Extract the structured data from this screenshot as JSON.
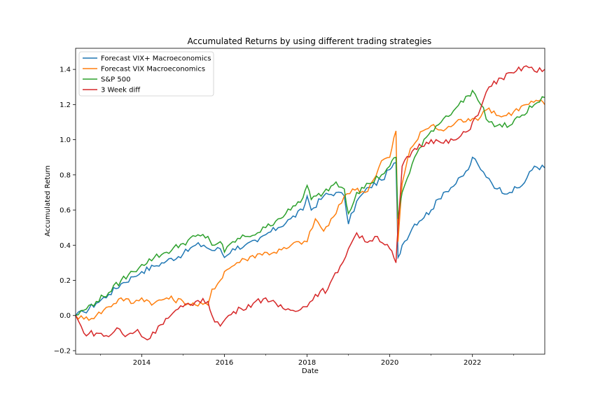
{
  "chart_data": {
    "type": "line",
    "title": "Accumulated Returns by using different trading strategies",
    "xlabel": "Date",
    "ylabel": "Accumulated Return",
    "xlim": [
      2012.4,
      2023.75
    ],
    "ylim": [
      -0.22,
      1.52
    ],
    "x_ticks": [
      2014,
      2016,
      2018,
      2020,
      2022
    ],
    "y_ticks": [
      -0.2,
      0.0,
      0.2,
      0.4,
      0.6,
      0.8,
      1.0,
      1.2,
      1.4
    ],
    "y_tick_labels": [
      "−0.2",
      "0.0",
      "0.2",
      "0.4",
      "0.6",
      "0.8",
      "1.0",
      "1.2",
      "1.4"
    ],
    "legend_position": "upper-left",
    "grid": false,
    "series": [
      {
        "name": "Forecast VIX+ Macroeconomics",
        "color": "#1f77b4",
        "points": [
          [
            2012.4,
            0.0
          ],
          [
            2012.6,
            0.02
          ],
          [
            2012.9,
            0.07
          ],
          [
            2013.2,
            0.12
          ],
          [
            2013.5,
            0.18
          ],
          [
            2013.8,
            0.22
          ],
          [
            2014.0,
            0.25
          ],
          [
            2014.3,
            0.28
          ],
          [
            2014.6,
            0.31
          ],
          [
            2015.0,
            0.35
          ],
          [
            2015.3,
            0.4
          ],
          [
            2015.5,
            0.4
          ],
          [
            2015.7,
            0.37
          ],
          [
            2015.9,
            0.38
          ],
          [
            2016.0,
            0.33
          ],
          [
            2016.2,
            0.38
          ],
          [
            2016.5,
            0.4
          ],
          [
            2016.8,
            0.42
          ],
          [
            2017.0,
            0.46
          ],
          [
            2017.3,
            0.5
          ],
          [
            2017.6,
            0.55
          ],
          [
            2017.9,
            0.6
          ],
          [
            2018.0,
            0.68
          ],
          [
            2018.1,
            0.6
          ],
          [
            2018.4,
            0.68
          ],
          [
            2018.7,
            0.7
          ],
          [
            2018.9,
            0.68
          ],
          [
            2019.0,
            0.52
          ],
          [
            2019.2,
            0.65
          ],
          [
            2019.5,
            0.73
          ],
          [
            2019.8,
            0.77
          ],
          [
            2020.0,
            0.83
          ],
          [
            2020.15,
            0.87
          ],
          [
            2020.2,
            0.33
          ],
          [
            2020.3,
            0.4
          ],
          [
            2020.6,
            0.52
          ],
          [
            2021.0,
            0.6
          ],
          [
            2021.3,
            0.7
          ],
          [
            2021.6,
            0.75
          ],
          [
            2021.9,
            0.83
          ],
          [
            2022.0,
            0.9
          ],
          [
            2022.2,
            0.83
          ],
          [
            2022.4,
            0.78
          ],
          [
            2022.6,
            0.72
          ],
          [
            2022.9,
            0.7
          ],
          [
            2023.2,
            0.74
          ],
          [
            2023.5,
            0.85
          ],
          [
            2023.75,
            0.84
          ]
        ]
      },
      {
        "name": "Forecast VIX Macroeconomics",
        "color": "#ff7f0e",
        "points": [
          [
            2012.4,
            0.0
          ],
          [
            2012.6,
            -0.02
          ],
          [
            2012.9,
            0.0
          ],
          [
            2013.2,
            0.05
          ],
          [
            2013.5,
            0.1
          ],
          [
            2013.8,
            0.07
          ],
          [
            2014.0,
            0.1
          ],
          [
            2014.3,
            0.07
          ],
          [
            2014.6,
            0.1
          ],
          [
            2015.0,
            0.08
          ],
          [
            2015.3,
            0.06
          ],
          [
            2015.6,
            0.06
          ],
          [
            2015.7,
            0.15
          ],
          [
            2015.9,
            0.2
          ],
          [
            2016.0,
            0.25
          ],
          [
            2016.3,
            0.3
          ],
          [
            2016.5,
            0.32
          ],
          [
            2016.8,
            0.35
          ],
          [
            2017.2,
            0.36
          ],
          [
            2017.5,
            0.38
          ],
          [
            2017.8,
            0.42
          ],
          [
            2018.0,
            0.42
          ],
          [
            2018.2,
            0.55
          ],
          [
            2018.4,
            0.48
          ],
          [
            2018.7,
            0.58
          ],
          [
            2018.9,
            0.68
          ],
          [
            2019.1,
            0.72
          ],
          [
            2019.4,
            0.7
          ],
          [
            2019.6,
            0.77
          ],
          [
            2019.8,
            0.88
          ],
          [
            2020.0,
            0.9
          ],
          [
            2020.15,
            1.05
          ],
          [
            2020.2,
            0.42
          ],
          [
            2020.3,
            0.75
          ],
          [
            2020.5,
            0.95
          ],
          [
            2020.8,
            1.05
          ],
          [
            2021.0,
            1.08
          ],
          [
            2021.3,
            1.05
          ],
          [
            2021.6,
            1.1
          ],
          [
            2021.9,
            1.12
          ],
          [
            2022.0,
            1.12
          ],
          [
            2022.2,
            1.13
          ],
          [
            2022.4,
            1.18
          ],
          [
            2022.7,
            1.13
          ],
          [
            2023.0,
            1.16
          ],
          [
            2023.3,
            1.2
          ],
          [
            2023.6,
            1.22
          ],
          [
            2023.75,
            1.2
          ]
        ]
      },
      {
        "name": "S&P 500",
        "color": "#2ca02c",
        "points": [
          [
            2012.4,
            0.0
          ],
          [
            2012.6,
            0.03
          ],
          [
            2012.9,
            0.08
          ],
          [
            2013.2,
            0.13
          ],
          [
            2013.5,
            0.2
          ],
          [
            2013.8,
            0.25
          ],
          [
            2014.0,
            0.29
          ],
          [
            2014.3,
            0.33
          ],
          [
            2014.6,
            0.36
          ],
          [
            2015.0,
            0.41
          ],
          [
            2015.3,
            0.45
          ],
          [
            2015.6,
            0.45
          ],
          [
            2015.7,
            0.4
          ],
          [
            2015.9,
            0.42
          ],
          [
            2016.0,
            0.36
          ],
          [
            2016.2,
            0.42
          ],
          [
            2016.5,
            0.45
          ],
          [
            2016.8,
            0.47
          ],
          [
            2017.0,
            0.5
          ],
          [
            2017.3,
            0.55
          ],
          [
            2017.6,
            0.6
          ],
          [
            2017.9,
            0.67
          ],
          [
            2018.0,
            0.74
          ],
          [
            2018.1,
            0.66
          ],
          [
            2018.4,
            0.7
          ],
          [
            2018.7,
            0.76
          ],
          [
            2018.9,
            0.72
          ],
          [
            2019.0,
            0.58
          ],
          [
            2019.2,
            0.7
          ],
          [
            2019.5,
            0.75
          ],
          [
            2019.8,
            0.8
          ],
          [
            2020.0,
            0.85
          ],
          [
            2020.15,
            0.9
          ],
          [
            2020.2,
            0.55
          ],
          [
            2020.3,
            0.7
          ],
          [
            2020.6,
            0.9
          ],
          [
            2021.0,
            1.05
          ],
          [
            2021.3,
            1.12
          ],
          [
            2021.6,
            1.18
          ],
          [
            2021.9,
            1.25
          ],
          [
            2022.0,
            1.28
          ],
          [
            2022.2,
            1.2
          ],
          [
            2022.4,
            1.1
          ],
          [
            2022.6,
            1.08
          ],
          [
            2022.9,
            1.08
          ],
          [
            2023.2,
            1.14
          ],
          [
            2023.5,
            1.2
          ],
          [
            2023.75,
            1.24
          ]
        ]
      },
      {
        "name": "3 Week diff",
        "color": "#d62728",
        "points": [
          [
            2012.4,
            0.0
          ],
          [
            2012.6,
            -0.1
          ],
          [
            2012.9,
            -0.1
          ],
          [
            2013.2,
            -0.12
          ],
          [
            2013.4,
            -0.07
          ],
          [
            2013.6,
            -0.12
          ],
          [
            2013.9,
            -0.08
          ],
          [
            2014.0,
            -0.12
          ],
          [
            2014.2,
            -0.13
          ],
          [
            2014.4,
            -0.06
          ],
          [
            2014.7,
            0.0
          ],
          [
            2015.0,
            0.05
          ],
          [
            2015.3,
            0.08
          ],
          [
            2015.6,
            0.08
          ],
          [
            2015.7,
            0.0
          ],
          [
            2015.9,
            -0.06
          ],
          [
            2016.1,
            0.0
          ],
          [
            2016.4,
            0.04
          ],
          [
            2016.7,
            0.07
          ],
          [
            2017.0,
            0.1
          ],
          [
            2017.3,
            0.05
          ],
          [
            2017.6,
            0.03
          ],
          [
            2017.9,
            0.05
          ],
          [
            2018.0,
            0.05
          ],
          [
            2018.2,
            0.12
          ],
          [
            2018.5,
            0.15
          ],
          [
            2018.8,
            0.28
          ],
          [
            2019.0,
            0.38
          ],
          [
            2019.2,
            0.47
          ],
          [
            2019.4,
            0.42
          ],
          [
            2019.7,
            0.45
          ],
          [
            2020.0,
            0.38
          ],
          [
            2020.15,
            0.3
          ],
          [
            2020.2,
            0.5
          ],
          [
            2020.3,
            0.85
          ],
          [
            2020.6,
            0.95
          ],
          [
            2021.0,
            1.0
          ],
          [
            2021.3,
            0.98
          ],
          [
            2021.6,
            1.0
          ],
          [
            2021.9,
            1.05
          ],
          [
            2022.0,
            1.1
          ],
          [
            2022.2,
            1.18
          ],
          [
            2022.4,
            1.3
          ],
          [
            2022.7,
            1.35
          ],
          [
            2023.0,
            1.38
          ],
          [
            2023.3,
            1.42
          ],
          [
            2023.5,
            1.39
          ],
          [
            2023.75,
            1.4
          ]
        ]
      }
    ]
  }
}
